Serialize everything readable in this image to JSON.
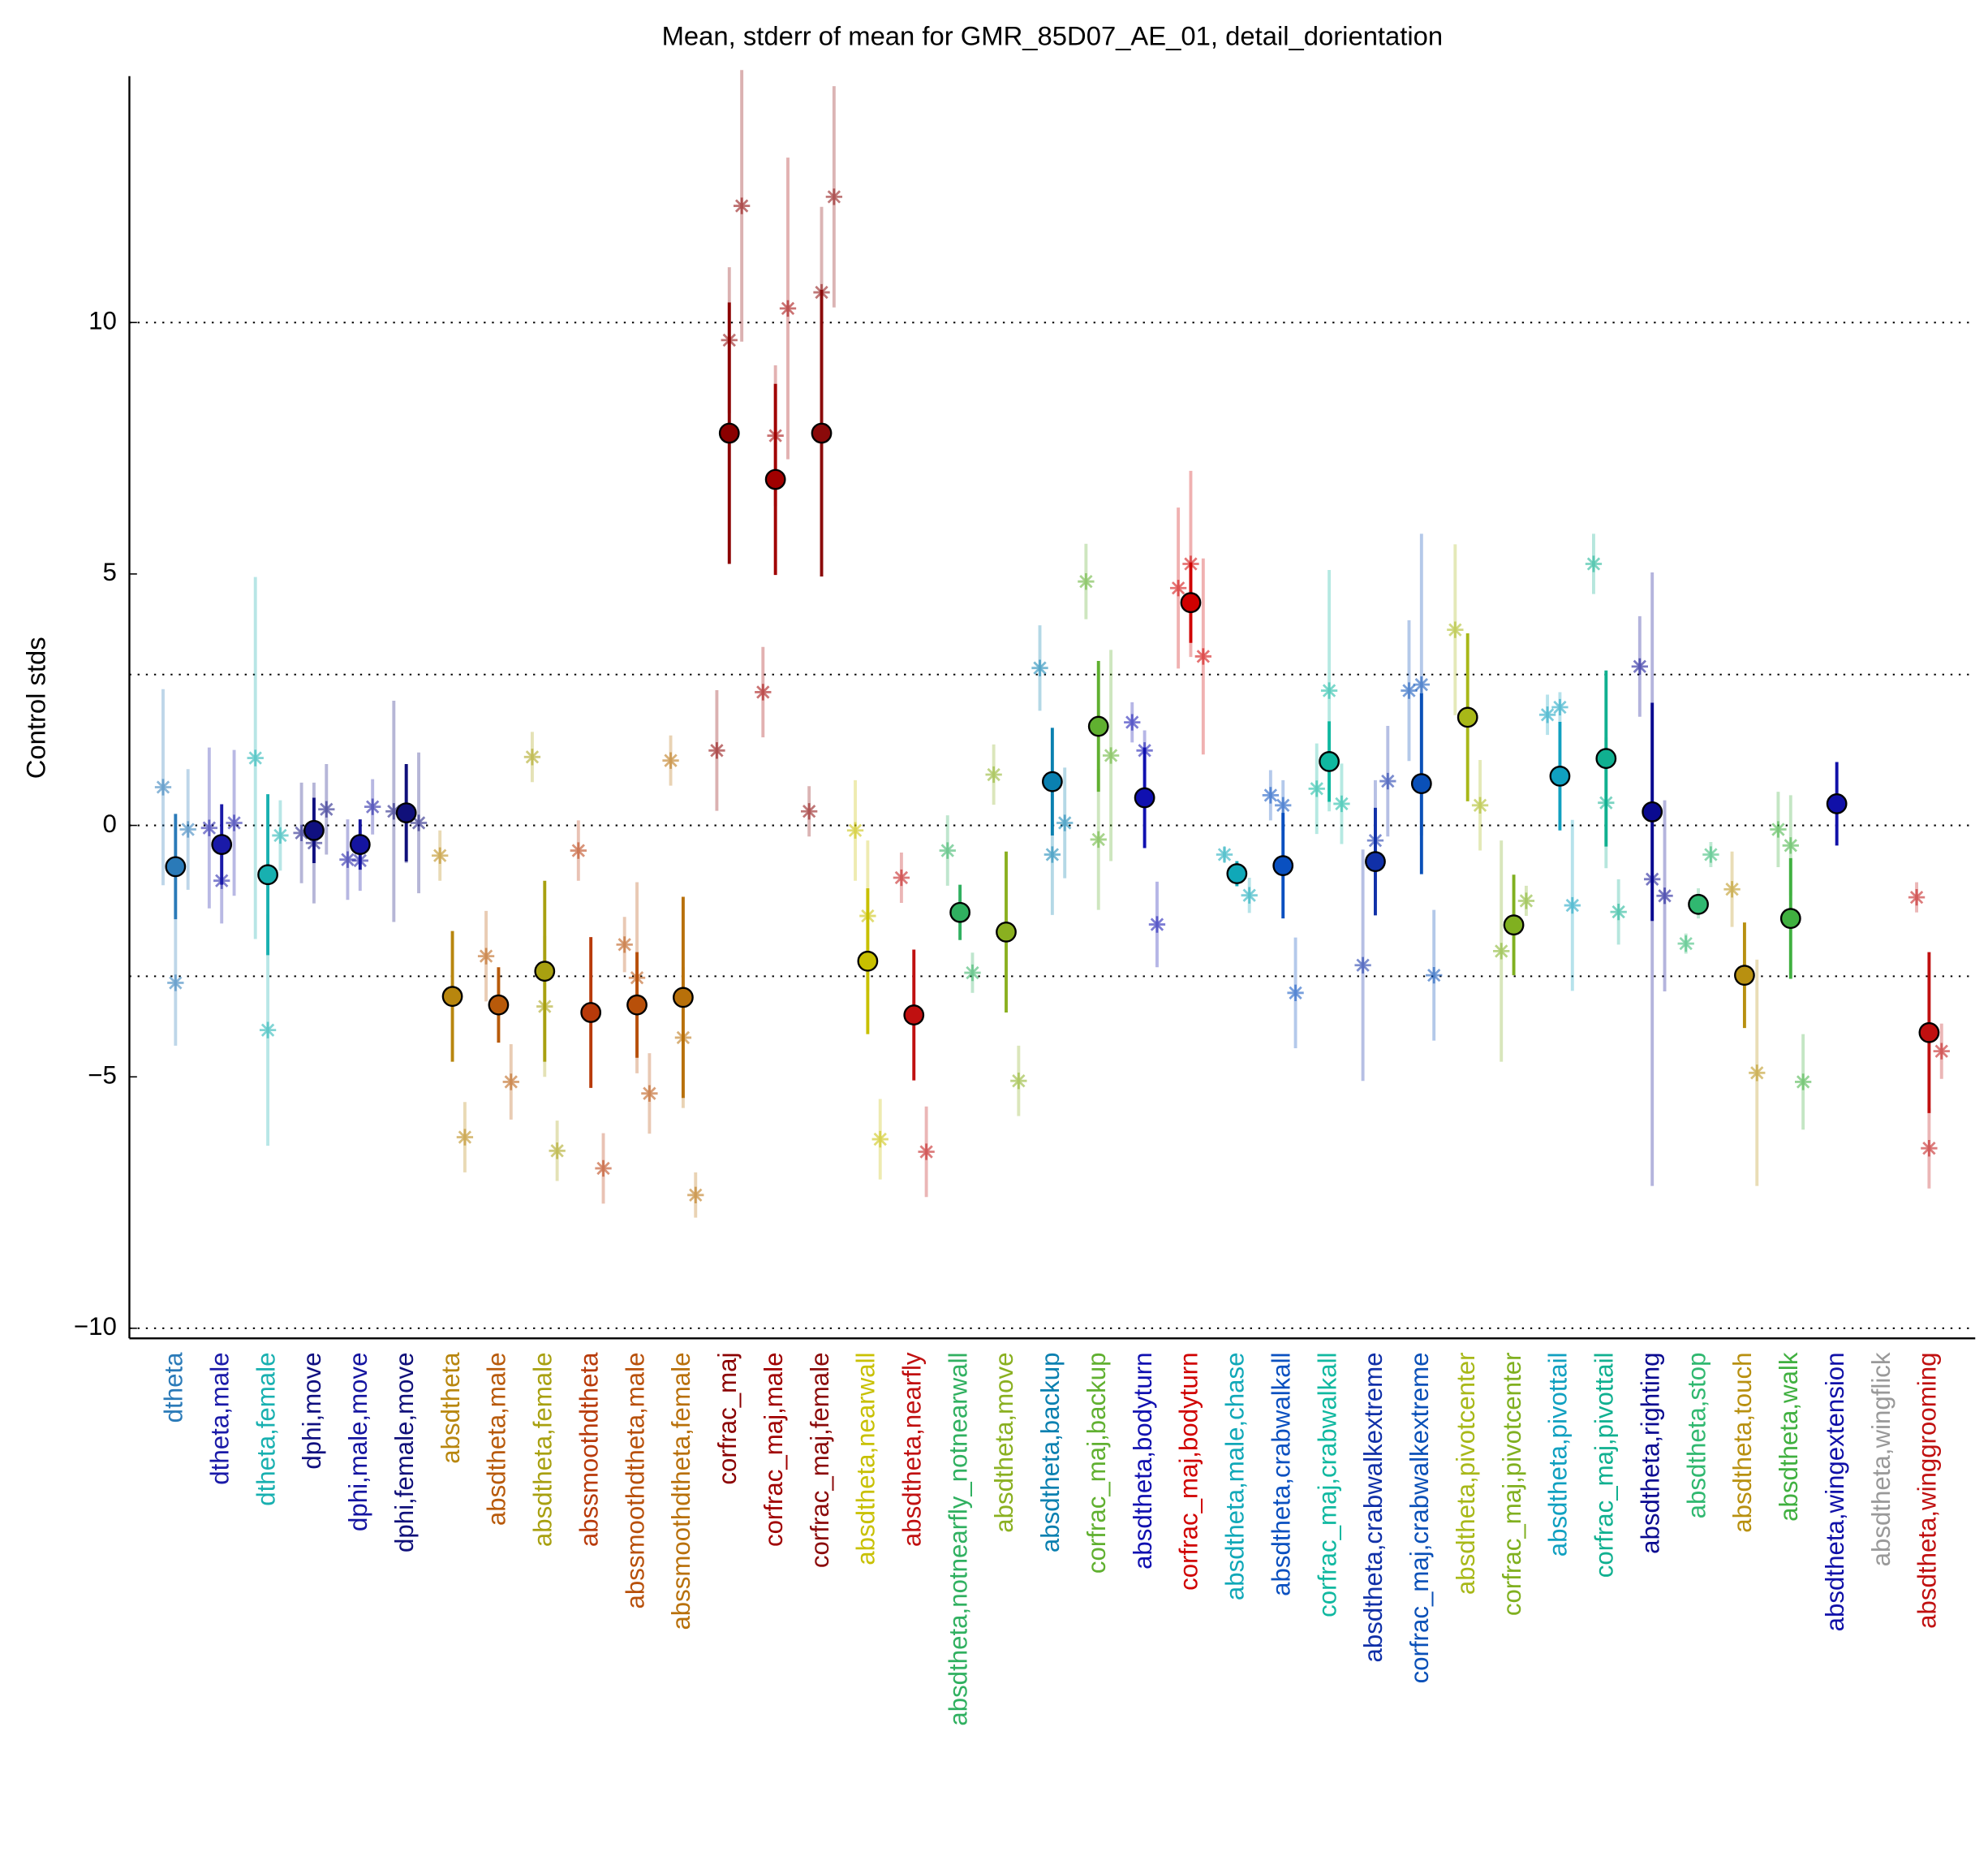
{
  "chart_data": {
    "type": "errorbar",
    "title": "Mean, stderr of mean for GMR_85D07_AE_01, detail_dorientation",
    "ylabel": "Control stds",
    "ylim": [
      -10.2,
      14.9
    ],
    "yticks": [
      {
        "value": -10,
        "label": "−10"
      },
      {
        "value": -5,
        "label": "−5"
      },
      0,
      5,
      10
    ],
    "reference_lines": [
      -10,
      -3,
      0,
      3,
      10
    ],
    "categories": [
      "dtheta",
      "dtheta,male",
      "dtheta,female",
      "dphi,move",
      "dphi,male,move",
      "dphi,female,move",
      "absdtheta",
      "absdtheta,male",
      "absdtheta,female",
      "abssmoothdtheta",
      "abssmoothdtheta,male",
      "abssmoothdtheta,female",
      "corfrac_maj",
      "corfrac_maj,male",
      "corfrac_maj,female",
      "absdtheta,nearwall",
      "absdtheta,nearfly",
      "absdtheta,notnearfly_notnearwall",
      "absdtheta,move",
      "absdtheta,backup",
      "corfrac_maj,backup",
      "absdtheta,bodyturn",
      "corfrac_maj,bodyturn",
      "absdtheta,male,chase",
      "absdtheta,crabwalkall",
      "corfrac_maj,crabwalkall",
      "absdtheta,crabwalkextreme",
      "corfrac_maj,crabwalkextreme",
      "absdtheta,pivotcenter",
      "corfrac_maj,pivotcenter",
      "absdtheta,pivottail",
      "corfrac_maj,pivottail",
      "absdtheta,righting",
      "absdtheta,stop",
      "absdtheta,touch",
      "absdtheta,walk",
      "absdtheta,wingextension",
      "absdtheta,wingflick",
      "absdtheta,winggrooming"
    ],
    "colors": [
      "#2a7ab8",
      "#1a1aa8",
      "#18b0b0",
      "#101080",
      "#1414a0",
      "#10107a",
      "#b8860e",
      "#b85a0a",
      "#a8a010",
      "#b83a0a",
      "#b8500a",
      "#b8700a",
      "#8b0000",
      "#a00000",
      "#8b0a0a",
      "#c8c000",
      "#c01010",
      "#30b060",
      "#8ab020",
      "#0a80b0",
      "#60b030",
      "#1010b0",
      "#d00000",
      "#10a8b8",
      "#0a50c0",
      "#10b8a0",
      "#1030a8",
      "#0a50b8",
      "#a8b818",
      "#80b020",
      "#10a0c0",
      "#10b090",
      "#0a0a90",
      "#30b870",
      "#b89010",
      "#40b040",
      "#1010a8",
      "#999999",
      "#c01010"
    ],
    "values": [
      -0.82,
      -0.38,
      -0.98,
      -0.1,
      -0.38,
      0.25,
      -3.4,
      -3.57,
      -2.9,
      -3.72,
      -3.57,
      -3.42,
      7.8,
      6.88,
      7.8,
      -2.7,
      -3.77,
      -1.73,
      -2.12,
      0.87,
      1.97,
      0.55,
      4.43,
      -0.96,
      -0.8,
      1.27,
      -0.72,
      0.83,
      2.15,
      -1.98,
      0.98,
      1.33,
      0.27,
      -1.57,
      -2.98,
      -1.85,
      0.43,
      null,
      -4.12
    ],
    "errors": [
      1.05,
      0.8,
      1.6,
      0.65,
      0.5,
      0.97,
      1.3,
      0.75,
      1.8,
      1.5,
      1.05,
      2.0,
      2.6,
      1.9,
      2.85,
      1.45,
      1.3,
      0.55,
      1.6,
      1.07,
      1.3,
      1.0,
      0.8,
      0.25,
      1.05,
      0.8,
      1.07,
      1.8,
      1.67,
      1.0,
      1.08,
      1.75,
      2.17,
      0.2,
      1.05,
      1.2,
      0.83,
      null,
      1.6
    ],
    "experiments": [
      {
        "values": [
          0.76,
          -3.13,
          -0.08
        ],
        "errors": [
          1.95,
          1.25,
          1.2
        ]
      },
      {
        "values": [
          -0.05,
          -1.1,
          0.05
        ],
        "errors": [
          1.6,
          0.85,
          1.45
        ]
      },
      {
        "values": [
          1.34,
          -4.07,
          -0.2
        ],
        "errors": [
          3.6,
          2.3,
          0.7
        ]
      },
      {
        "values": [
          -0.15,
          -0.35,
          0.32
        ],
        "errors": [
          1.0,
          1.2,
          0.9
        ]
      },
      {
        "values": [
          -0.68,
          -0.7,
          0.37
        ],
        "errors": [
          0.8,
          0.6,
          0.55
        ]
      },
      {
        "values": [
          0.28,
          0.22,
          0.05
        ],
        "errors": [
          2.2,
          0.97,
          1.4
        ]
      },
      {
        "values": [
          -0.6,
          -6.2
        ],
        "errors": [
          0.5,
          0.7
        ]
      },
      {
        "values": [
          -2.6,
          -5.1
        ],
        "errors": [
          0.9,
          0.75
        ]
      },
      {
        "values": [
          1.36,
          -3.6,
          -6.47
        ],
        "errors": [
          0.5,
          1.4,
          0.6
        ]
      },
      {
        "values": [
          -0.5,
          -6.82
        ],
        "errors": [
          0.6,
          0.7
        ]
      },
      {
        "values": [
          -2.37,
          -3.03,
          -5.33
        ],
        "errors": [
          0.55,
          1.9,
          0.8
        ]
      },
      {
        "values": [
          1.29,
          -4.22,
          -7.35
        ],
        "errors": [
          0.5,
          1.4,
          0.45
        ]
      },
      {
        "values": [
          1.49,
          9.65,
          12.32
        ],
        "errors": [
          1.2,
          1.45,
          2.7
        ]
      },
      {
        "values": [
          2.65,
          7.75,
          10.28
        ],
        "errors": [
          0.9,
          1.4,
          3.0
        ]
      },
      {
        "values": [
          0.28,
          10.6,
          12.5
        ],
        "errors": [
          0.5,
          1.7,
          2.2
        ]
      },
      {
        "values": [
          -0.1,
          -1.8,
          -6.24
        ],
        "errors": [
          1.0,
          1.5,
          0.8
        ]
      },
      {
        "values": [
          -1.04,
          -6.49
        ],
        "errors": [
          0.5,
          0.9
        ]
      },
      {
        "values": [
          -0.5,
          -2.93
        ],
        "errors": [
          0.7,
          0.4
        ]
      },
      {
        "values": [
          1.01,
          -5.08
        ],
        "errors": [
          0.6,
          0.7
        ]
      },
      {
        "values": [
          3.13,
          -0.58,
          0.05
        ],
        "errors": [
          0.85,
          1.2,
          1.1
        ]
      },
      {
        "values": [
          4.85,
          -0.28,
          1.39
        ],
        "errors": [
          0.75,
          1.4,
          2.1
        ]
      },
      {
        "values": [
          2.05,
          1.49,
          -1.97
        ],
        "errors": [
          0.4,
          0.4,
          0.85
        ]
      },
      {
        "values": [
          4.72,
          5.2,
          3.36
        ],
        "errors": [
          1.6,
          1.85,
          1.95
        ]
      },
      {
        "values": [
          -0.58,
          -1.39
        ],
        "errors": [
          0.15,
          0.35
        ]
      },
      {
        "values": [
          0.6,
          0.4,
          -3.33
        ],
        "errors": [
          0.5,
          0.5,
          1.1
        ]
      },
      {
        "values": [
          0.73,
          2.68,
          0.43
        ],
        "errors": [
          0.9,
          2.4,
          0.8
        ]
      },
      {
        "values": [
          -2.78,
          -0.3,
          0.88
        ],
        "errors": [
          2.3,
          1.2,
          1.1
        ]
      },
      {
        "values": [
          2.68,
          2.8,
          -2.98
        ],
        "errors": [
          1.4,
          3.0,
          1.3
        ]
      },
      {
        "values": [
          3.89,
          0.4
        ],
        "errors": [
          1.7,
          0.9
        ]
      },
      {
        "values": [
          -2.5,
          -1.5
        ],
        "errors": [
          2.2,
          0.3
        ]
      },
      {
        "values": [
          2.2,
          2.35,
          -1.59
        ],
        "errors": [
          0.4,
          0.3,
          1.7
        ]
      },
      {
        "values": [
          5.2,
          0.45,
          -1.72
        ],
        "errors": [
          0.6,
          1.3,
          0.65
        ]
      },
      {
        "values": [
          3.16,
          -1.07,
          -1.4
        ],
        "errors": [
          1.0,
          6.1,
          1.9
        ]
      },
      {
        "values": [
          -2.35,
          -1.55,
          -0.58
        ],
        "errors": [
          0.2,
          0.3,
          0.25
        ]
      },
      {
        "values": [
          -1.27,
          -4.92
        ],
        "errors": [
          0.75,
          2.25
        ]
      },
      {
        "values": [
          -0.08,
          -0.4,
          -5.1
        ],
        "errors": [
          0.75,
          1.0,
          0.95
        ]
      },
      {
        "values": [],
        "errors": []
      },
      {
        "values": [],
        "errors": []
      },
      {
        "values": [
          -1.43,
          -6.42,
          -4.49
        ],
        "errors": [
          0.3,
          0.8,
          0.55
        ]
      }
    ]
  }
}
